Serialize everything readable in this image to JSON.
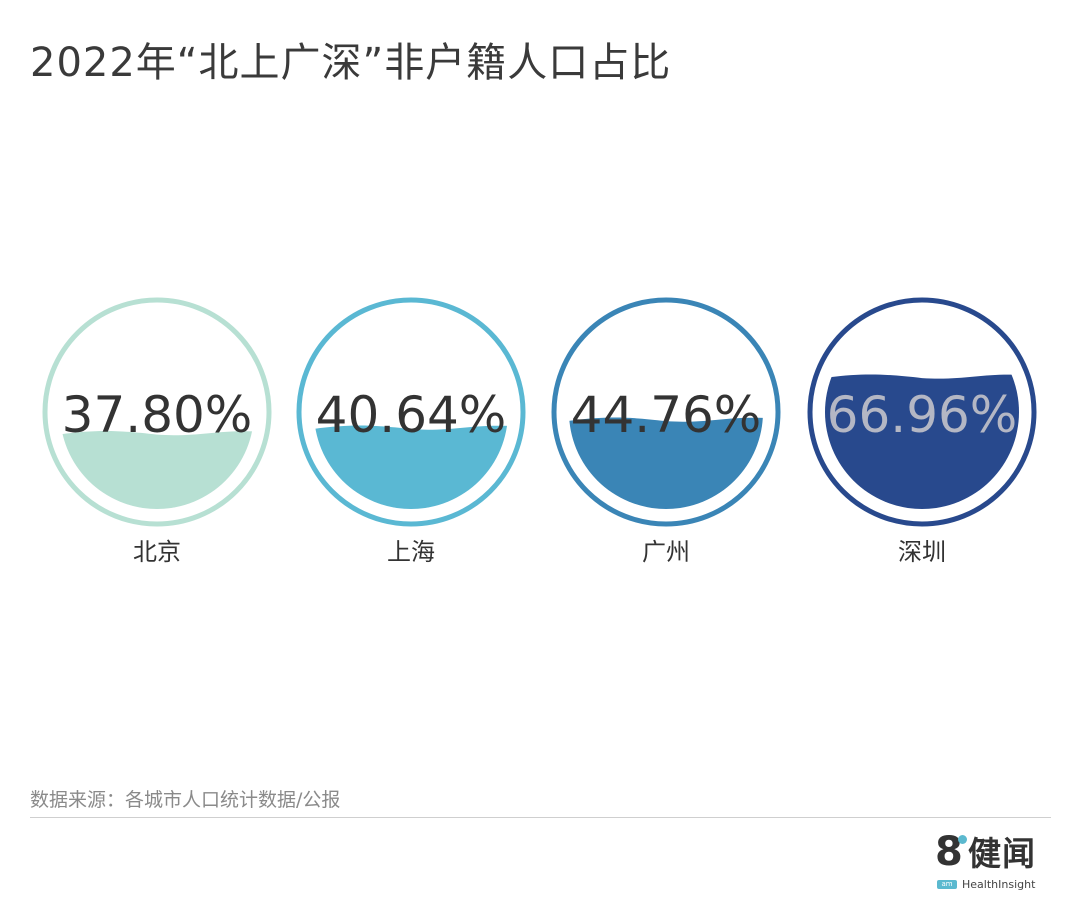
{
  "title": "2022年“北上广深”非户籍人口占比",
  "source": "数据来源：各城市人口统计数据/公报",
  "logo": {
    "eight": "8",
    "name": "健闻",
    "badge": "am",
    "english": "HealthInsight",
    "accent": "#5bb9cf"
  },
  "chart_data": {
    "type": "liquid-fill",
    "unit": "%",
    "ylim": [
      0,
      100
    ],
    "series": [
      {
        "label": "北京",
        "value": 37.8,
        "display": "37.80%",
        "color": "#b7e0d3",
        "text_color": "#333333"
      },
      {
        "label": "上海",
        "value": 40.64,
        "display": "40.64%",
        "color": "#5ab8d3",
        "text_color": "#333333"
      },
      {
        "label": "广州",
        "value": 44.76,
        "display": "44.76%",
        "color": "#3a85b6",
        "text_color": "#333333"
      },
      {
        "label": "深圳",
        "value": 66.96,
        "display": "66.96%",
        "color": "#28498d",
        "text_color": "#b4b7c4"
      }
    ]
  }
}
